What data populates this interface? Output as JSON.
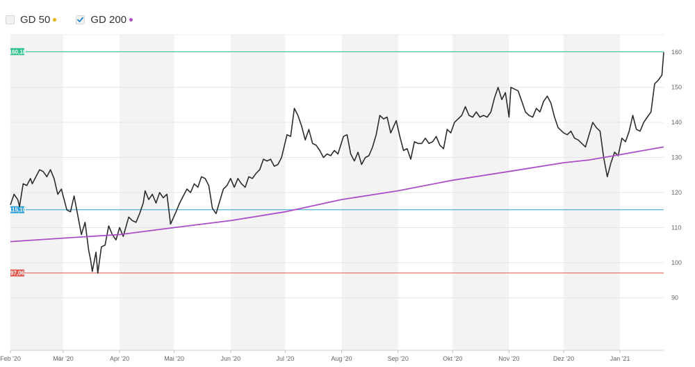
{
  "legend": {
    "items": [
      {
        "label": "GD 50",
        "checked": false,
        "dot_color": "#e8b400"
      },
      {
        "label": "GD 200",
        "checked": true,
        "dot_color": "#a94ec6",
        "check_color": "#1e88c7"
      }
    ]
  },
  "chart_data": {
    "type": "line",
    "title": "",
    "xlabel": "",
    "ylabel": "",
    "ylim": [
      75,
      165
    ],
    "y_ticks": [
      90,
      100,
      110,
      120,
      130,
      140,
      150,
      160
    ],
    "grid": true,
    "x_start": "2020-02-01",
    "x_end": "2021-01-25",
    "months": [
      {
        "label": "Feb '20",
        "start": "2020-02-01"
      },
      {
        "label": "Mär '20",
        "start": "2020-03-01"
      },
      {
        "label": "Apr '20",
        "start": "2020-04-01"
      },
      {
        "label": "Mai '20",
        "start": "2020-05-01"
      },
      {
        "label": "Jun '20",
        "start": "2020-06-01"
      },
      {
        "label": "Jul '20",
        "start": "2020-07-01"
      },
      {
        "label": "Aug '20",
        "start": "2020-08-01"
      },
      {
        "label": "Sep '20",
        "start": "2020-09-01"
      },
      {
        "label": "Okt '20",
        "start": "2020-10-01"
      },
      {
        "label": "Nov '20",
        "start": "2020-11-01"
      },
      {
        "label": "Dez '20",
        "start": "2020-12-01"
      },
      {
        "label": "Jan '21",
        "start": "2021-01-01"
      }
    ],
    "reference_lines": [
      {
        "label": "160,18",
        "value": 160.18,
        "color": "#2ec28a"
      },
      {
        "label": "115,10",
        "value": 115.1,
        "color": "#2f9fd8"
      },
      {
        "label": "97,06",
        "value": 97.06,
        "color": "#e0584d"
      }
    ],
    "series": [
      {
        "name": "",
        "color": "#2b2b2b",
        "points": [
          [
            "2020-02-01",
            116.5
          ],
          [
            "2020-02-03",
            119.5
          ],
          [
            "2020-02-05",
            118.0
          ],
          [
            "2020-02-06",
            116.0
          ],
          [
            "2020-02-08",
            122.5
          ],
          [
            "2020-02-10",
            122.0
          ],
          [
            "2020-02-12",
            124.0
          ],
          [
            "2020-02-13",
            122.5
          ],
          [
            "2020-02-15",
            124.5
          ],
          [
            "2020-02-17",
            126.5
          ],
          [
            "2020-02-19",
            126.0
          ],
          [
            "2020-02-21",
            124.5
          ],
          [
            "2020-02-23",
            126.5
          ],
          [
            "2020-02-25",
            124.0
          ],
          [
            "2020-02-27",
            119.5
          ],
          [
            "2020-02-29",
            121.0
          ],
          [
            "2020-03-03",
            115.0
          ],
          [
            "2020-03-05",
            114.5
          ],
          [
            "2020-03-07",
            119.0
          ],
          [
            "2020-03-09",
            113.5
          ],
          [
            "2020-03-11",
            108.0
          ],
          [
            "2020-03-13",
            111.5
          ],
          [
            "2020-03-15",
            103.5
          ],
          [
            "2020-03-16",
            101.0
          ],
          [
            "2020-03-17",
            97.5
          ],
          [
            "2020-03-19",
            103.0
          ],
          [
            "2020-03-20",
            97.0
          ],
          [
            "2020-03-22",
            104.5
          ],
          [
            "2020-03-24",
            105.0
          ],
          [
            "2020-03-26",
            110.5
          ],
          [
            "2020-03-28",
            108.0
          ],
          [
            "2020-03-30",
            106.5
          ],
          [
            "2020-04-01",
            110.0
          ],
          [
            "2020-04-03",
            107.5
          ],
          [
            "2020-04-06",
            113.0
          ],
          [
            "2020-04-08",
            112.0
          ],
          [
            "2020-04-10",
            111.5
          ],
          [
            "2020-04-12",
            114.0
          ],
          [
            "2020-04-14",
            117.0
          ],
          [
            "2020-04-15",
            120.5
          ],
          [
            "2020-04-17",
            118.0
          ],
          [
            "2020-04-19",
            119.5
          ],
          [
            "2020-04-21",
            117.0
          ],
          [
            "2020-04-23",
            120.0
          ],
          [
            "2020-04-25",
            118.5
          ],
          [
            "2020-04-27",
            119.5
          ],
          [
            "2020-04-29",
            111.0
          ],
          [
            "2020-05-02",
            114.5
          ],
          [
            "2020-05-04",
            117.0
          ],
          [
            "2020-05-06",
            119.0
          ],
          [
            "2020-05-08",
            121.0
          ],
          [
            "2020-05-10",
            120.0
          ],
          [
            "2020-05-12",
            122.5
          ],
          [
            "2020-05-14",
            121.5
          ],
          [
            "2020-05-16",
            124.5
          ],
          [
            "2020-05-18",
            124.0
          ],
          [
            "2020-05-20",
            122.0
          ],
          [
            "2020-05-22",
            115.5
          ],
          [
            "2020-05-24",
            114.0
          ],
          [
            "2020-05-26",
            117.5
          ],
          [
            "2020-05-28",
            121.0
          ],
          [
            "2020-05-30",
            122.0
          ],
          [
            "2020-06-01",
            124.0
          ],
          [
            "2020-06-03",
            121.5
          ],
          [
            "2020-06-05",
            124.0
          ],
          [
            "2020-06-07",
            122.5
          ],
          [
            "2020-06-09",
            121.5
          ],
          [
            "2020-06-11",
            124.5
          ],
          [
            "2020-06-13",
            124.0
          ],
          [
            "2020-06-15",
            125.5
          ],
          [
            "2020-06-17",
            126.5
          ],
          [
            "2020-06-19",
            129.5
          ],
          [
            "2020-06-21",
            129.0
          ],
          [
            "2020-06-23",
            129.5
          ],
          [
            "2020-06-25",
            127.5
          ],
          [
            "2020-06-27",
            128.0
          ],
          [
            "2020-06-29",
            130.0
          ],
          [
            "2020-07-02",
            136.5
          ],
          [
            "2020-07-04",
            136.0
          ],
          [
            "2020-07-06",
            144.0
          ],
          [
            "2020-07-08",
            142.0
          ],
          [
            "2020-07-10",
            139.0
          ],
          [
            "2020-07-12",
            135.0
          ],
          [
            "2020-07-14",
            138.0
          ],
          [
            "2020-07-16",
            134.0
          ],
          [
            "2020-07-18",
            133.5
          ],
          [
            "2020-07-20",
            132.0
          ],
          [
            "2020-07-22",
            130.0
          ],
          [
            "2020-07-24",
            131.0
          ],
          [
            "2020-07-26",
            130.5
          ],
          [
            "2020-07-28",
            132.0
          ],
          [
            "2020-07-30",
            131.0
          ],
          [
            "2020-08-02",
            136.0
          ],
          [
            "2020-08-04",
            136.5
          ],
          [
            "2020-08-06",
            131.0
          ],
          [
            "2020-08-08",
            129.0
          ],
          [
            "2020-08-10",
            131.5
          ],
          [
            "2020-08-12",
            128.0
          ],
          [
            "2020-08-14",
            130.0
          ],
          [
            "2020-08-16",
            130.5
          ],
          [
            "2020-08-18",
            133.0
          ],
          [
            "2020-08-20",
            136.5
          ],
          [
            "2020-08-22",
            142.0
          ],
          [
            "2020-08-24",
            141.0
          ],
          [
            "2020-08-26",
            141.5
          ],
          [
            "2020-08-28",
            137.0
          ],
          [
            "2020-08-31",
            140.5
          ],
          [
            "2020-09-02",
            136.0
          ],
          [
            "2020-09-04",
            132.0
          ],
          [
            "2020-09-06",
            132.5
          ],
          [
            "2020-09-08",
            129.5
          ],
          [
            "2020-09-10",
            134.5
          ],
          [
            "2020-09-12",
            134.0
          ],
          [
            "2020-09-14",
            134.0
          ],
          [
            "2020-09-16",
            135.5
          ],
          [
            "2020-09-18",
            134.0
          ],
          [
            "2020-09-20",
            134.5
          ],
          [
            "2020-09-22",
            136.0
          ],
          [
            "2020-09-24",
            133.5
          ],
          [
            "2020-09-26",
            132.5
          ],
          [
            "2020-09-28",
            138.0
          ],
          [
            "2020-09-30",
            137.0
          ],
          [
            "2020-10-02",
            140.0
          ],
          [
            "2020-10-04",
            141.0
          ],
          [
            "2020-10-06",
            142.0
          ],
          [
            "2020-10-08",
            144.5
          ],
          [
            "2020-10-10",
            142.0
          ],
          [
            "2020-10-12",
            141.5
          ],
          [
            "2020-10-14",
            143.0
          ],
          [
            "2020-10-16",
            141.5
          ],
          [
            "2020-10-18",
            142.0
          ],
          [
            "2020-10-20",
            141.5
          ],
          [
            "2020-10-22",
            143.0
          ],
          [
            "2020-10-24",
            147.0
          ],
          [
            "2020-10-26",
            150.0
          ],
          [
            "2020-10-28",
            146.5
          ],
          [
            "2020-10-30",
            148.5
          ],
          [
            "2020-11-01",
            141.5
          ],
          [
            "2020-11-02",
            150.0
          ],
          [
            "2020-11-04",
            149.5
          ],
          [
            "2020-11-06",
            149.0
          ],
          [
            "2020-11-08",
            146.0
          ],
          [
            "2020-11-10",
            143.0
          ],
          [
            "2020-11-12",
            142.0
          ],
          [
            "2020-11-14",
            141.5
          ],
          [
            "2020-11-16",
            144.0
          ],
          [
            "2020-11-18",
            143.0
          ],
          [
            "2020-11-20",
            146.0
          ],
          [
            "2020-11-22",
            147.5
          ],
          [
            "2020-11-24",
            145.5
          ],
          [
            "2020-11-26",
            141.5
          ],
          [
            "2020-11-28",
            138.5
          ],
          [
            "2020-12-01",
            137.0
          ],
          [
            "2020-12-03",
            136.5
          ],
          [
            "2020-12-05",
            137.5
          ],
          [
            "2020-12-07",
            135.5
          ],
          [
            "2020-12-09",
            135.0
          ],
          [
            "2020-12-11",
            134.0
          ],
          [
            "2020-12-13",
            133.0
          ],
          [
            "2020-12-15",
            136.5
          ],
          [
            "2020-12-17",
            140.0
          ],
          [
            "2020-12-19",
            138.5
          ],
          [
            "2020-12-21",
            137.5
          ],
          [
            "2020-12-23",
            130.0
          ],
          [
            "2020-12-25",
            124.5
          ],
          [
            "2020-12-27",
            128.5
          ],
          [
            "2020-12-29",
            131.5
          ],
          [
            "2020-12-31",
            130.5
          ],
          [
            "2021-01-02",
            135.5
          ],
          [
            "2021-01-04",
            134.5
          ],
          [
            "2021-01-06",
            137.5
          ],
          [
            "2021-01-08",
            142.0
          ],
          [
            "2021-01-10",
            138.0
          ],
          [
            "2021-01-12",
            137.5
          ],
          [
            "2021-01-14",
            140.0
          ],
          [
            "2021-01-16",
            141.5
          ],
          [
            "2021-01-18",
            143.0
          ],
          [
            "2021-01-20",
            151.0
          ],
          [
            "2021-01-22",
            152.0
          ],
          [
            "2021-01-24",
            153.5
          ],
          [
            "2021-01-25",
            160.0
          ]
        ]
      },
      {
        "name": "GD 200",
        "color": "#a94ec6",
        "points": [
          [
            "2020-02-01",
            106.0
          ],
          [
            "2020-03-01",
            107.0
          ],
          [
            "2020-04-01",
            108.0
          ],
          [
            "2020-05-01",
            110.0
          ],
          [
            "2020-06-01",
            112.0
          ],
          [
            "2020-07-01",
            114.5
          ],
          [
            "2020-08-01",
            118.0
          ],
          [
            "2020-09-01",
            120.5
          ],
          [
            "2020-10-01",
            123.5
          ],
          [
            "2020-11-01",
            126.0
          ],
          [
            "2020-12-01",
            128.5
          ],
          [
            "2020-12-15",
            129.3
          ],
          [
            "2021-01-01",
            130.8
          ],
          [
            "2021-01-25",
            133.0
          ]
        ]
      }
    ]
  }
}
